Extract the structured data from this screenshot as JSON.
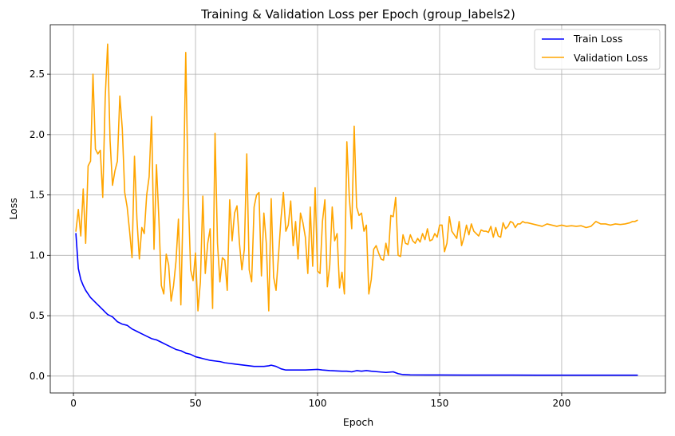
{
  "chart_data": {
    "type": "line",
    "title": "Training & Validation Loss per Epoch (group_labels2)",
    "xlabel": "Epoch",
    "ylabel": "Loss",
    "xlim": [
      -9.5,
      242.5
    ],
    "ylim": [
      -0.14,
      2.91
    ],
    "xticks": [
      0,
      50,
      100,
      150,
      200
    ],
    "yticks": [
      0.0,
      0.5,
      1.0,
      1.5,
      2.0,
      2.5
    ],
    "xtick_labels": [
      "0",
      "50",
      "100",
      "150",
      "200"
    ],
    "ytick_labels": [
      "0.0",
      "0.5",
      "1.0",
      "1.5",
      "2.0",
      "2.5"
    ],
    "grid": true,
    "legend_position": "top-right",
    "colors": {
      "train": "#0000ff",
      "validation": "#ffa500",
      "grid": "#b0b0b0"
    },
    "series": [
      {
        "name": "Train Loss",
        "points": [
          [
            1,
            1.18
          ],
          [
            2,
            0.89
          ],
          [
            3,
            0.8
          ],
          [
            4,
            0.75
          ],
          [
            5,
            0.71
          ],
          [
            6,
            0.68
          ],
          [
            7,
            0.65
          ],
          [
            8,
            0.63
          ],
          [
            9,
            0.61
          ],
          [
            10,
            0.59
          ],
          [
            11,
            0.57
          ],
          [
            12,
            0.55
          ],
          [
            13,
            0.53
          ],
          [
            14,
            0.51
          ],
          [
            15,
            0.5
          ],
          [
            16,
            0.49
          ],
          [
            17,
            0.47
          ],
          [
            18,
            0.45
          ],
          [
            20,
            0.43
          ],
          [
            22,
            0.42
          ],
          [
            24,
            0.39
          ],
          [
            26,
            0.37
          ],
          [
            28,
            0.35
          ],
          [
            30,
            0.33
          ],
          [
            32,
            0.31
          ],
          [
            34,
            0.3
          ],
          [
            36,
            0.28
          ],
          [
            38,
            0.26
          ],
          [
            40,
            0.24
          ],
          [
            42,
            0.22
          ],
          [
            44,
            0.21
          ],
          [
            46,
            0.19
          ],
          [
            48,
            0.18
          ],
          [
            50,
            0.16
          ],
          [
            52,
            0.15
          ],
          [
            54,
            0.14
          ],
          [
            56,
            0.13
          ],
          [
            58,
            0.125
          ],
          [
            60,
            0.12
          ],
          [
            62,
            0.11
          ],
          [
            64,
            0.105
          ],
          [
            66,
            0.1
          ],
          [
            68,
            0.095
          ],
          [
            70,
            0.09
          ],
          [
            72,
            0.085
          ],
          [
            74,
            0.08
          ],
          [
            76,
            0.08
          ],
          [
            78,
            0.08
          ],
          [
            80,
            0.085
          ],
          [
            81,
            0.09
          ],
          [
            83,
            0.08
          ],
          [
            85,
            0.06
          ],
          [
            87,
            0.05
          ],
          [
            90,
            0.05
          ],
          [
            95,
            0.05
          ],
          [
            100,
            0.055
          ],
          [
            102,
            0.05
          ],
          [
            105,
            0.045
          ],
          [
            110,
            0.04
          ],
          [
            112,
            0.04
          ],
          [
            114,
            0.035
          ],
          [
            116,
            0.045
          ],
          [
            118,
            0.04
          ],
          [
            120,
            0.045
          ],
          [
            122,
            0.04
          ],
          [
            125,
            0.035
          ],
          [
            128,
            0.03
          ],
          [
            131,
            0.035
          ],
          [
            133,
            0.02
          ],
          [
            135,
            0.012
          ],
          [
            138,
            0.01
          ],
          [
            145,
            0.009
          ],
          [
            150,
            0.009
          ],
          [
            160,
            0.008
          ],
          [
            170,
            0.008
          ],
          [
            180,
            0.008
          ],
          [
            190,
            0.007
          ],
          [
            200,
            0.007
          ],
          [
            210,
            0.007
          ],
          [
            220,
            0.007
          ],
          [
            231,
            0.007
          ]
        ]
      },
      {
        "name": "Validation Loss",
        "points": [
          [
            1,
            1.2
          ],
          [
            2,
            1.38
          ],
          [
            3,
            1.16
          ],
          [
            4,
            1.55
          ],
          [
            5,
            1.1
          ],
          [
            6,
            1.74
          ],
          [
            7,
            1.78
          ],
          [
            8,
            2.5
          ],
          [
            9,
            1.88
          ],
          [
            10,
            1.84
          ],
          [
            11,
            1.87
          ],
          [
            12,
            1.48
          ],
          [
            13,
            2.3
          ],
          [
            14,
            2.75
          ],
          [
            15,
            1.95
          ],
          [
            16,
            1.58
          ],
          [
            17,
            1.7
          ],
          [
            18,
            1.78
          ],
          [
            19,
            2.32
          ],
          [
            20,
            2.05
          ],
          [
            21,
            1.52
          ],
          [
            22,
            1.4
          ],
          [
            23,
            1.2
          ],
          [
            24,
            0.98
          ],
          [
            25,
            1.82
          ],
          [
            26,
            1.3
          ],
          [
            27,
            0.97
          ],
          [
            28,
            1.23
          ],
          [
            29,
            1.18
          ],
          [
            30,
            1.5
          ],
          [
            31,
            1.65
          ],
          [
            32,
            2.15
          ],
          [
            33,
            1.05
          ],
          [
            34,
            1.75
          ],
          [
            35,
            1.3
          ],
          [
            36,
            0.75
          ],
          [
            37,
            0.68
          ],
          [
            38,
            1.01
          ],
          [
            39,
            0.92
          ],
          [
            40,
            0.62
          ],
          [
            41,
            0.75
          ],
          [
            42,
            0.95
          ],
          [
            43,
            1.3
          ],
          [
            44,
            0.59
          ],
          [
            45,
            1.48
          ],
          [
            46,
            2.68
          ],
          [
            47,
            1.5
          ],
          [
            48,
            0.88
          ],
          [
            49,
            0.79
          ],
          [
            50,
            1.02
          ],
          [
            51,
            0.54
          ],
          [
            52,
            0.78
          ],
          [
            53,
            1.49
          ],
          [
            54,
            0.85
          ],
          [
            55,
            1.1
          ],
          [
            56,
            1.22
          ],
          [
            57,
            0.56
          ],
          [
            58,
            2.01
          ],
          [
            59,
            1.1
          ],
          [
            60,
            0.78
          ],
          [
            61,
            0.98
          ],
          [
            62,
            0.96
          ],
          [
            63,
            0.71
          ],
          [
            64,
            1.46
          ],
          [
            65,
            1.12
          ],
          [
            66,
            1.35
          ],
          [
            67,
            1.41
          ],
          [
            68,
            1.1
          ],
          [
            69,
            0.88
          ],
          [
            70,
            1.05
          ],
          [
            71,
            1.84
          ],
          [
            72,
            0.88
          ],
          [
            73,
            0.78
          ],
          [
            74,
            1.4
          ],
          [
            75,
            1.5
          ],
          [
            76,
            1.52
          ],
          [
            77,
            0.83
          ],
          [
            78,
            1.35
          ],
          [
            79,
            1.1
          ],
          [
            80,
            0.54
          ],
          [
            81,
            1.47
          ],
          [
            82,
            0.82
          ],
          [
            83,
            0.71
          ],
          [
            84,
            1.0
          ],
          [
            85,
            1.3
          ],
          [
            86,
            1.52
          ],
          [
            87,
            1.2
          ],
          [
            88,
            1.25
          ],
          [
            89,
            1.45
          ],
          [
            90,
            1.08
          ],
          [
            91,
            1.28
          ],
          [
            92,
            0.97
          ],
          [
            93,
            1.35
          ],
          [
            94,
            1.27
          ],
          [
            95,
            1.15
          ],
          [
            96,
            0.85
          ],
          [
            97,
            1.4
          ],
          [
            98,
            0.91
          ],
          [
            99,
            1.56
          ],
          [
            100,
            0.87
          ],
          [
            101,
            0.85
          ],
          [
            102,
            1.28
          ],
          [
            103,
            1.46
          ],
          [
            104,
            0.74
          ],
          [
            105,
            0.92
          ],
          [
            106,
            1.4
          ],
          [
            107,
            1.12
          ],
          [
            108,
            1.18
          ],
          [
            109,
            0.73
          ],
          [
            110,
            0.86
          ],
          [
            111,
            0.68
          ],
          [
            112,
            1.94
          ],
          [
            113,
            1.48
          ],
          [
            114,
            1.22
          ],
          [
            115,
            2.07
          ],
          [
            116,
            1.4
          ],
          [
            117,
            1.33
          ],
          [
            118,
            1.35
          ],
          [
            119,
            1.2
          ],
          [
            120,
            1.25
          ],
          [
            121,
            0.68
          ],
          [
            122,
            0.8
          ],
          [
            123,
            1.05
          ],
          [
            124,
            1.08
          ],
          [
            125,
            1.02
          ],
          [
            126,
            0.97
          ],
          [
            127,
            0.96
          ],
          [
            128,
            1.1
          ],
          [
            129,
            1.0
          ],
          [
            130,
            1.33
          ],
          [
            131,
            1.32
          ],
          [
            132,
            1.48
          ],
          [
            133,
            1.0
          ],
          [
            134,
            0.99
          ],
          [
            135,
            1.17
          ],
          [
            136,
            1.1
          ],
          [
            137,
            1.09
          ],
          [
            138,
            1.17
          ],
          [
            139,
            1.12
          ],
          [
            140,
            1.1
          ],
          [
            141,
            1.14
          ],
          [
            142,
            1.11
          ],
          [
            143,
            1.18
          ],
          [
            144,
            1.13
          ],
          [
            145,
            1.22
          ],
          [
            146,
            1.12
          ],
          [
            147,
            1.13
          ],
          [
            148,
            1.18
          ],
          [
            149,
            1.15
          ],
          [
            150,
            1.25
          ],
          [
            151,
            1.25
          ],
          [
            152,
            1.03
          ],
          [
            153,
            1.1
          ],
          [
            154,
            1.32
          ],
          [
            155,
            1.2
          ],
          [
            156,
            1.17
          ],
          [
            157,
            1.14
          ],
          [
            158,
            1.28
          ],
          [
            159,
            1.08
          ],
          [
            160,
            1.15
          ],
          [
            161,
            1.25
          ],
          [
            162,
            1.17
          ],
          [
            163,
            1.26
          ],
          [
            164,
            1.2
          ],
          [
            165,
            1.18
          ],
          [
            166,
            1.16
          ],
          [
            167,
            1.21
          ],
          [
            168,
            1.2
          ],
          [
            169,
            1.2
          ],
          [
            170,
            1.19
          ],
          [
            171,
            1.24
          ],
          [
            172,
            1.15
          ],
          [
            173,
            1.23
          ],
          [
            174,
            1.16
          ],
          [
            175,
            1.15
          ],
          [
            176,
            1.27
          ],
          [
            177,
            1.22
          ],
          [
            178,
            1.24
          ],
          [
            179,
            1.28
          ],
          [
            180,
            1.27
          ],
          [
            181,
            1.23
          ],
          [
            182,
            1.26
          ],
          [
            183,
            1.26
          ],
          [
            184,
            1.28
          ],
          [
            185,
            1.27
          ],
          [
            186,
            1.27
          ],
          [
            188,
            1.26
          ],
          [
            190,
            1.25
          ],
          [
            192,
            1.24
          ],
          [
            194,
            1.26
          ],
          [
            196,
            1.25
          ],
          [
            198,
            1.24
          ],
          [
            200,
            1.25
          ],
          [
            202,
            1.24
          ],
          [
            204,
            1.245
          ],
          [
            206,
            1.24
          ],
          [
            208,
            1.245
          ],
          [
            210,
            1.23
          ],
          [
            212,
            1.24
          ],
          [
            214,
            1.28
          ],
          [
            216,
            1.26
          ],
          [
            218,
            1.26
          ],
          [
            220,
            1.25
          ],
          [
            222,
            1.26
          ],
          [
            224,
            1.255
          ],
          [
            226,
            1.26
          ],
          [
            228,
            1.27
          ],
          [
            229,
            1.28
          ],
          [
            230,
            1.28
          ],
          [
            231,
            1.29
          ]
        ]
      }
    ]
  }
}
